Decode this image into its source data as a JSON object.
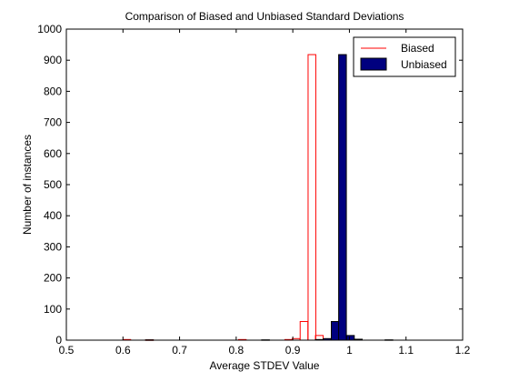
{
  "chart_data": {
    "type": "bar",
    "title": "Comparison of Biased and Unbiased Standard Deviations",
    "xlabel": "Average STDEV Value",
    "ylabel": "Number of instances",
    "xlim": [
      0.5,
      1.2
    ],
    "ylim": [
      0,
      1000
    ],
    "x_ticks": [
      "0.5",
      "0.6",
      "0.7",
      "0.8",
      "0.9",
      "1",
      "1.1",
      "1.2"
    ],
    "y_ticks": [
      "0",
      "100",
      "200",
      "300",
      "400",
      "500",
      "600",
      "700",
      "800",
      "900",
      "1000"
    ],
    "legend_position": "top-right",
    "bin_width": 0.0136,
    "series": [
      {
        "name": "Biased",
        "style": "outline",
        "color": "#ff0000",
        "bins": [
          {
            "x": 0.6,
            "y": 2
          },
          {
            "x": 0.64,
            "y": 1
          },
          {
            "x": 0.804,
            "y": 2
          },
          {
            "x": 0.886,
            "y": 2
          },
          {
            "x": 0.899,
            "y": 5
          },
          {
            "x": 0.913,
            "y": 60
          },
          {
            "x": 0.927,
            "y": 918
          },
          {
            "x": 0.94,
            "y": 15
          },
          {
            "x": 0.954,
            "y": 3
          }
        ]
      },
      {
        "name": "Unbiased",
        "style": "filled",
        "color": "#00007f",
        "bins": [
          {
            "x": 0.64,
            "y": 1
          },
          {
            "x": 0.845,
            "y": 1
          },
          {
            "x": 0.94,
            "y": 2
          },
          {
            "x": 0.954,
            "y": 5
          },
          {
            "x": 0.968,
            "y": 60
          },
          {
            "x": 0.981,
            "y": 918
          },
          {
            "x": 0.995,
            "y": 15
          },
          {
            "x": 1.009,
            "y": 3
          },
          {
            "x": 1.063,
            "y": 1
          }
        ]
      }
    ]
  }
}
